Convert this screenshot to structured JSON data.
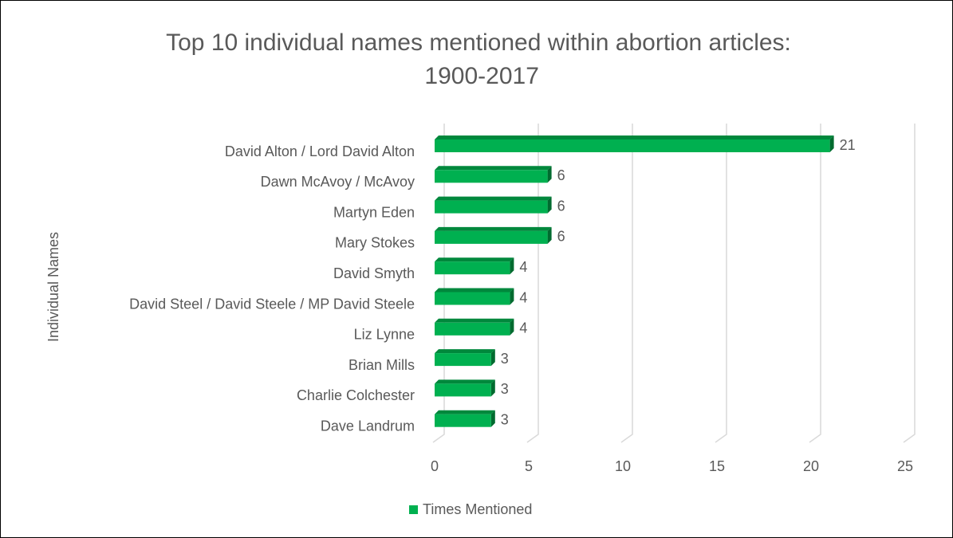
{
  "chart_data": {
    "type": "bar",
    "orientation": "horizontal",
    "title": "Top 10 individual names mentioned within abortion articles: 1900-2017",
    "y_label": "Individual Names",
    "categories": [
      "David Alton / Lord David Alton",
      "Dawn McAvoy / McAvoy",
      "Martyn Eden",
      "Mary Stokes",
      "David Smyth",
      "David Steel / David Steele / MP David Steele",
      "Liz Lynne",
      "Brian Mills",
      "Charlie Colchester",
      "Dave Landrum"
    ],
    "series": [
      {
        "name": "Times Mentioned",
        "color": "#00b050",
        "values": [
          21,
          6,
          6,
          6,
          4,
          4,
          4,
          3,
          3,
          3
        ]
      }
    ],
    "xlim": [
      0,
      25
    ],
    "xticks": [
      0,
      5,
      10,
      15,
      20,
      25
    ],
    "grid": true,
    "legend": "bottom",
    "data_labels": true
  }
}
